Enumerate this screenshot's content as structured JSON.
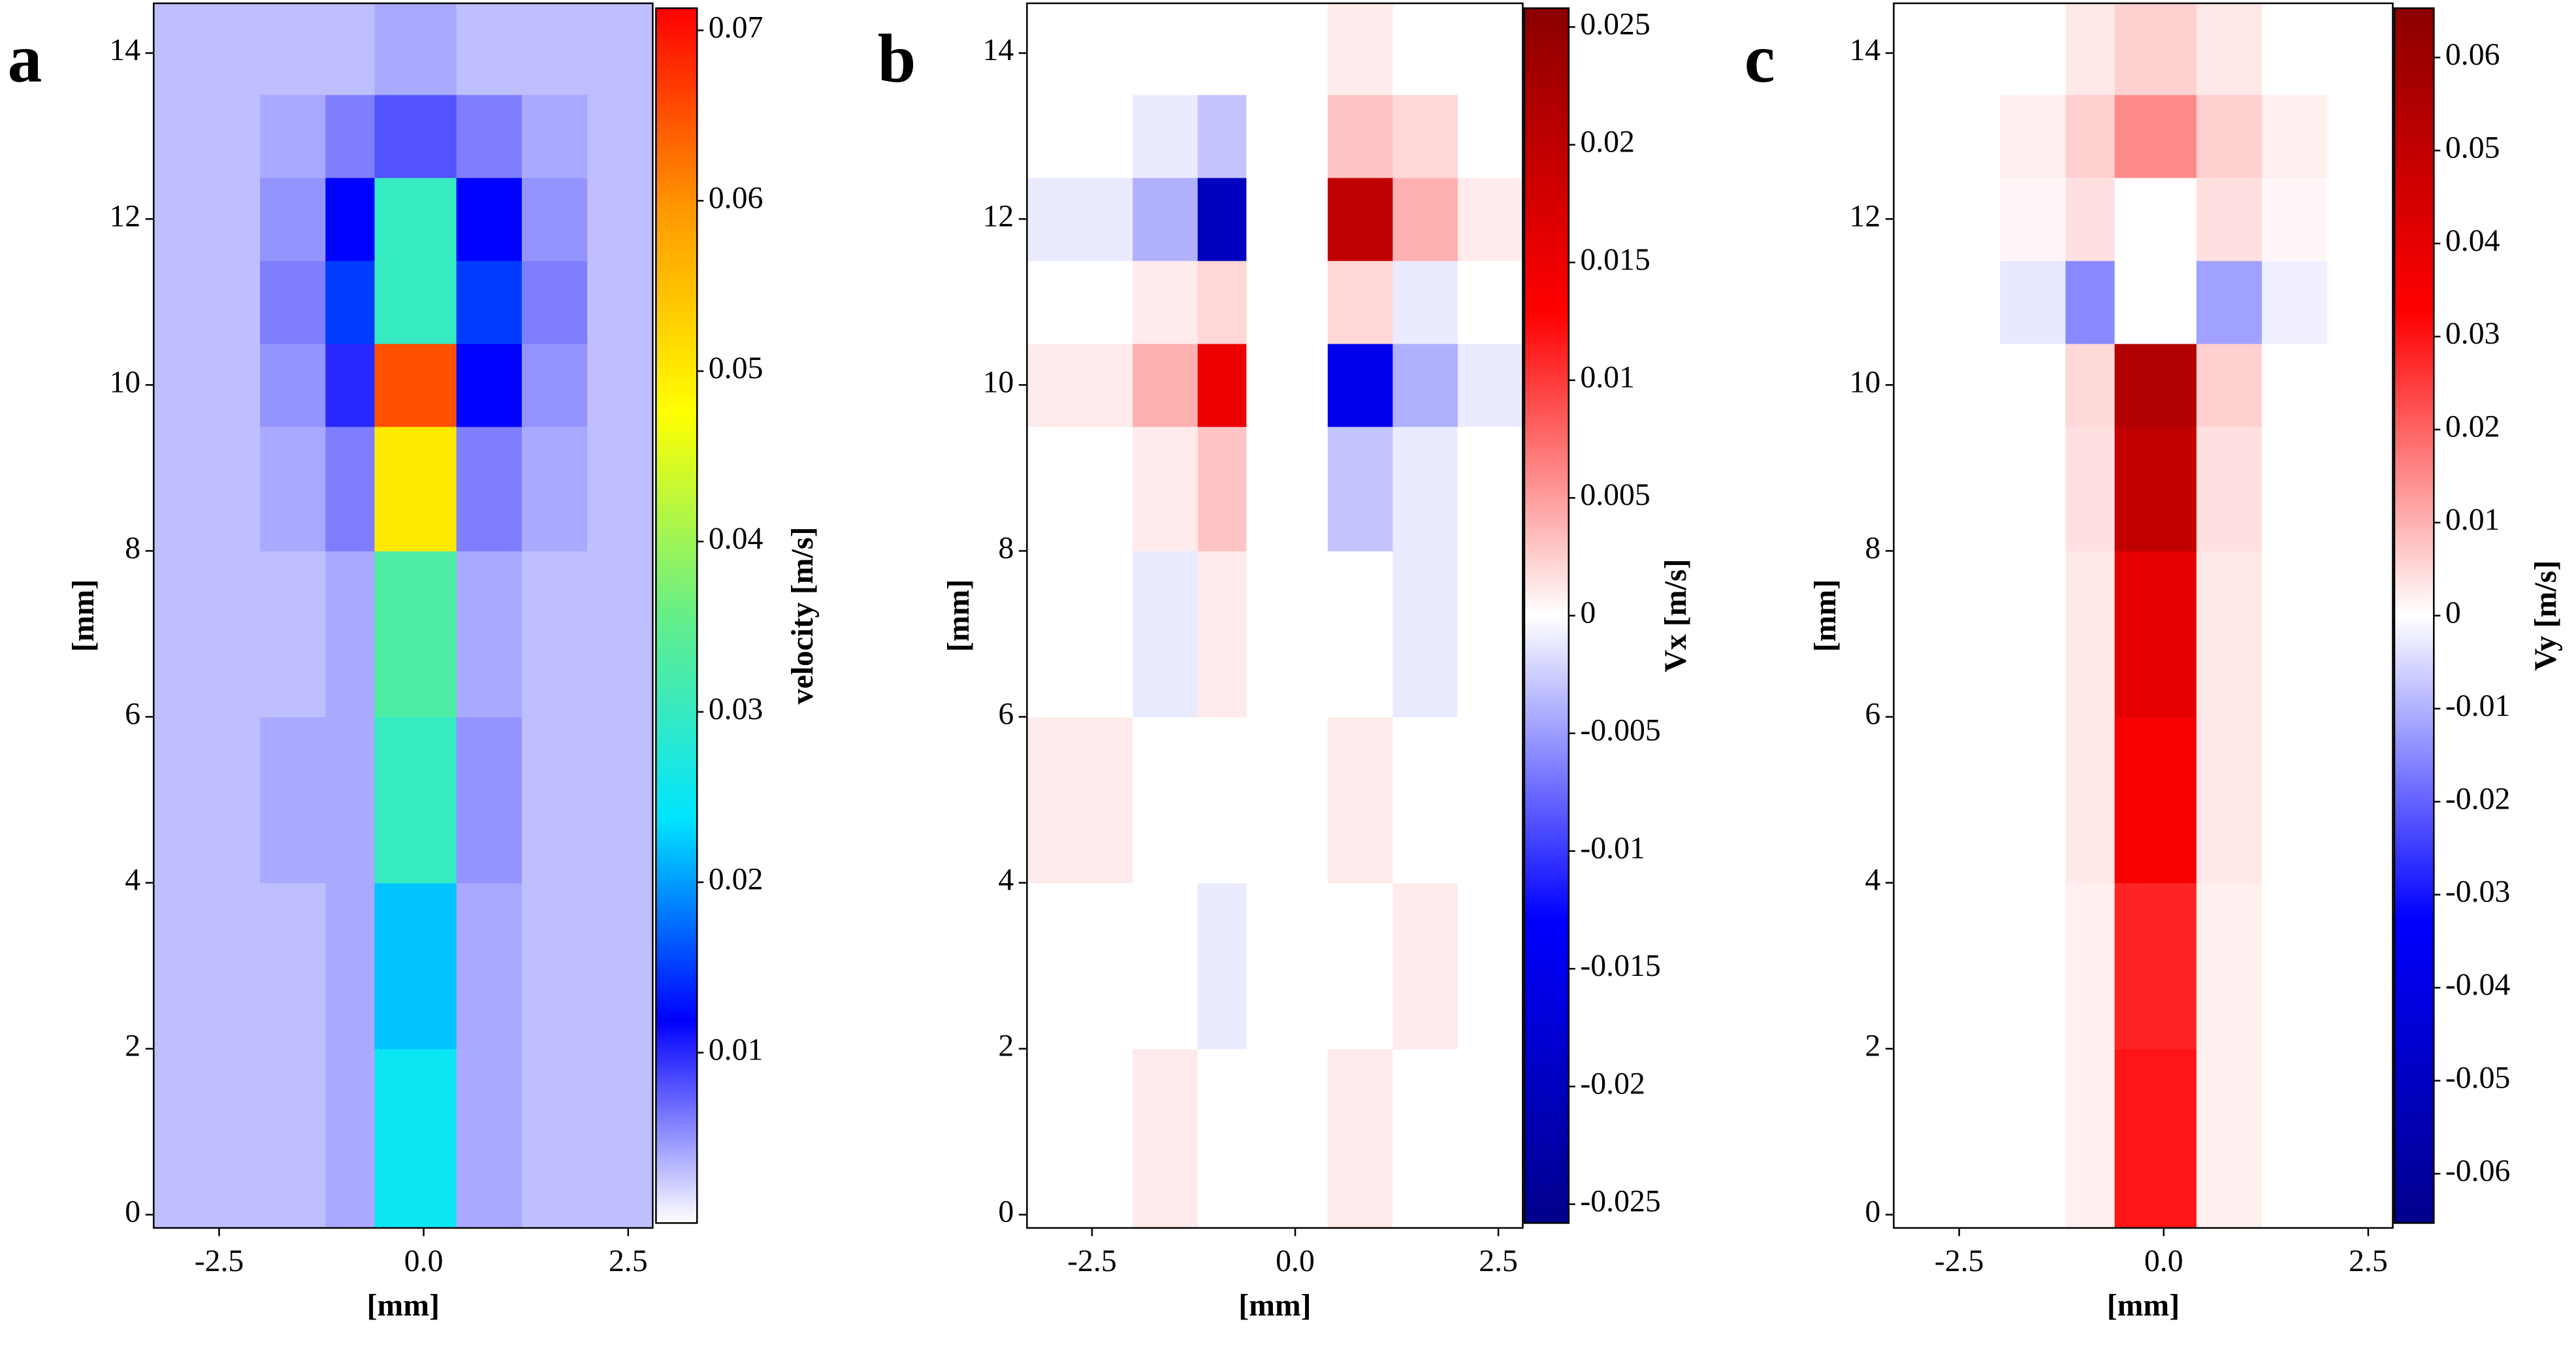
{
  "chart_data": [
    {
      "type": "heatmap",
      "panel_label": "a",
      "xlabel": "[mm]",
      "ylabel": "[mm]",
      "colorbar_label": "velocity [m/s]",
      "xlim": [
        -3.3,
        2.8
      ],
      "ylim": [
        -0.16,
        14.6
      ],
      "xticks": [
        -2.5,
        {
          "value": 0,
          "label": "0.0"
        },
        2.5
      ],
      "yticks": [
        0,
        2,
        4,
        6,
        8,
        10,
        12,
        14
      ],
      "x_edges": [
        -3.3,
        -2,
        -1.2,
        -0.6,
        0.4,
        1.2,
        2,
        2.8
      ],
      "y_edges": [
        -0.16,
        2,
        4,
        6,
        8,
        9.5,
        10.5,
        11.5,
        12.5,
        13.5,
        14.6
      ],
      "z": [
        [
          0.003,
          0.003,
          0.004,
          0.025,
          0.004,
          0.003,
          0.003
        ],
        [
          0.003,
          0.003,
          0.004,
          0.022,
          0.004,
          0.003,
          0.003
        ],
        [
          0.003,
          0.004,
          0.004,
          0.03,
          0.005,
          0.003,
          0.003
        ],
        [
          0.003,
          0.003,
          0.004,
          0.033,
          0.004,
          0.003,
          0.003
        ],
        [
          0.003,
          0.004,
          0.006,
          0.05,
          0.006,
          0.004,
          0.003
        ],
        [
          0.003,
          0.005,
          0.01,
          0.065,
          0.012,
          0.005,
          0.003
        ],
        [
          0.003,
          0.006,
          0.015,
          0.03,
          0.015,
          0.006,
          0.003
        ],
        [
          0.003,
          0.005,
          0.012,
          0.03,
          0.012,
          0.005,
          0.003
        ],
        [
          0.003,
          0.004,
          0.006,
          0.008,
          0.006,
          0.004,
          0.003
        ],
        [
          0.003,
          0.003,
          0.003,
          0.004,
          0.003,
          0.003,
          0.003
        ]
      ],
      "clim": [
        0,
        0.0713
      ],
      "cticks": [
        0.01,
        0.02,
        0.03,
        0.04,
        0.05,
        0.06,
        0.07
      ],
      "colorscale": [
        "#ffffff",
        "#0000ff",
        "#00e5ff",
        "#66ee88",
        "#ffff00",
        "#ff9900",
        "#ff0000"
      ]
    },
    {
      "type": "heatmap",
      "panel_label": "b",
      "xlabel": "[mm]",
      "ylabel": "[mm]",
      "colorbar_label": "Vx [m/s]",
      "xlim": [
        -3.3,
        2.8
      ],
      "ylim": [
        -0.16,
        14.6
      ],
      "xticks": [
        -2.5,
        {
          "value": 0,
          "label": "0.0"
        },
        2.5
      ],
      "yticks": [
        0,
        2,
        4,
        6,
        8,
        10,
        12,
        14
      ],
      "x_edges": [
        -3.3,
        -2,
        -1.2,
        -0.6,
        0.4,
        1.2,
        2,
        2.8
      ],
      "y_edges": [
        -0.16,
        2,
        4,
        6,
        8,
        9.5,
        10.5,
        11.5,
        12.5,
        13.5,
        14.6
      ],
      "z": [
        [
          0,
          0.001,
          0,
          0,
          0.001,
          0,
          0
        ],
        [
          0,
          0,
          -0.001,
          0,
          0,
          0.001,
          0
        ],
        [
          0.001,
          0,
          0,
          0,
          0.001,
          0,
          0
        ],
        [
          0,
          -0.001,
          0.001,
          0,
          0,
          -0.001,
          0
        ],
        [
          0,
          0.001,
          0.003,
          0,
          -0.003,
          -0.001,
          0
        ],
        [
          0.001,
          0.004,
          0.015,
          0,
          -0.015,
          -0.004,
          -0.001
        ],
        [
          0,
          0.001,
          0.002,
          0,
          0.002,
          -0.001,
          0
        ],
        [
          -0.001,
          -0.004,
          -0.02,
          0,
          0.02,
          0.004,
          0.001
        ],
        [
          0,
          -0.001,
          -0.003,
          0,
          0.003,
          0.002,
          0
        ],
        [
          0,
          0,
          0,
          0,
          0.001,
          0,
          0
        ]
      ],
      "clim": [
        -0.0258,
        0.0258
      ],
      "cticks": [
        0.025,
        0.02,
        0.015,
        0.01,
        0.005,
        0,
        -0.005,
        -0.01,
        -0.015,
        -0.02,
        -0.025
      ],
      "colorscale": [
        "#00008b",
        "#0000ff",
        "#ffffff",
        "#ff0000",
        "#8b0000"
      ]
    },
    {
      "type": "heatmap",
      "panel_label": "c",
      "xlabel": "[mm]",
      "ylabel": "[mm]",
      "colorbar_label": "Vy [m/s]",
      "xlim": [
        -3.3,
        2.8
      ],
      "ylim": [
        -0.16,
        14.6
      ],
      "xticks": [
        -2.5,
        {
          "value": 0,
          "label": "0.0"
        },
        2.5
      ],
      "yticks": [
        0,
        2,
        4,
        6,
        8,
        10,
        12,
        14
      ],
      "x_edges": [
        -3.3,
        -2,
        -1.2,
        -0.6,
        0.4,
        1.2,
        2,
        2.8
      ],
      "y_edges": [
        -0.16,
        2,
        4,
        6,
        8,
        9.5,
        10.5,
        11.5,
        12.5,
        13.5,
        14.6
      ],
      "z": [
        [
          0,
          0,
          0.002,
          0.03,
          0.002,
          0,
          0
        ],
        [
          0,
          0,
          0.002,
          0.028,
          0.002,
          0,
          0
        ],
        [
          0,
          0,
          0.003,
          0.035,
          0.003,
          0,
          0
        ],
        [
          0,
          0,
          0.003,
          0.04,
          0.003,
          0,
          0
        ],
        [
          0,
          0,
          0.004,
          0.05,
          0.004,
          0,
          0
        ],
        [
          0,
          0,
          0.005,
          0.055,
          0.006,
          0,
          0
        ],
        [
          0,
          -0.003,
          -0.015,
          0,
          -0.012,
          -0.002,
          0
        ],
        [
          0,
          0.001,
          0.004,
          0,
          0.004,
          0.001,
          0
        ],
        [
          0,
          0.002,
          0.006,
          0.015,
          0.006,
          0.002,
          0
        ],
        [
          0,
          0,
          0.003,
          0.006,
          0.003,
          0,
          0
        ]
      ],
      "clim": [
        -0.0653,
        0.0653
      ],
      "cticks": [
        0.06,
        0.05,
        0.04,
        0.03,
        0.02,
        0.01,
        0,
        -0.01,
        -0.02,
        -0.03,
        -0.04,
        -0.05,
        -0.06
      ],
      "colorscale": [
        "#00008b",
        "#0000ff",
        "#ffffff",
        "#ff0000",
        "#8b0000"
      ]
    }
  ]
}
